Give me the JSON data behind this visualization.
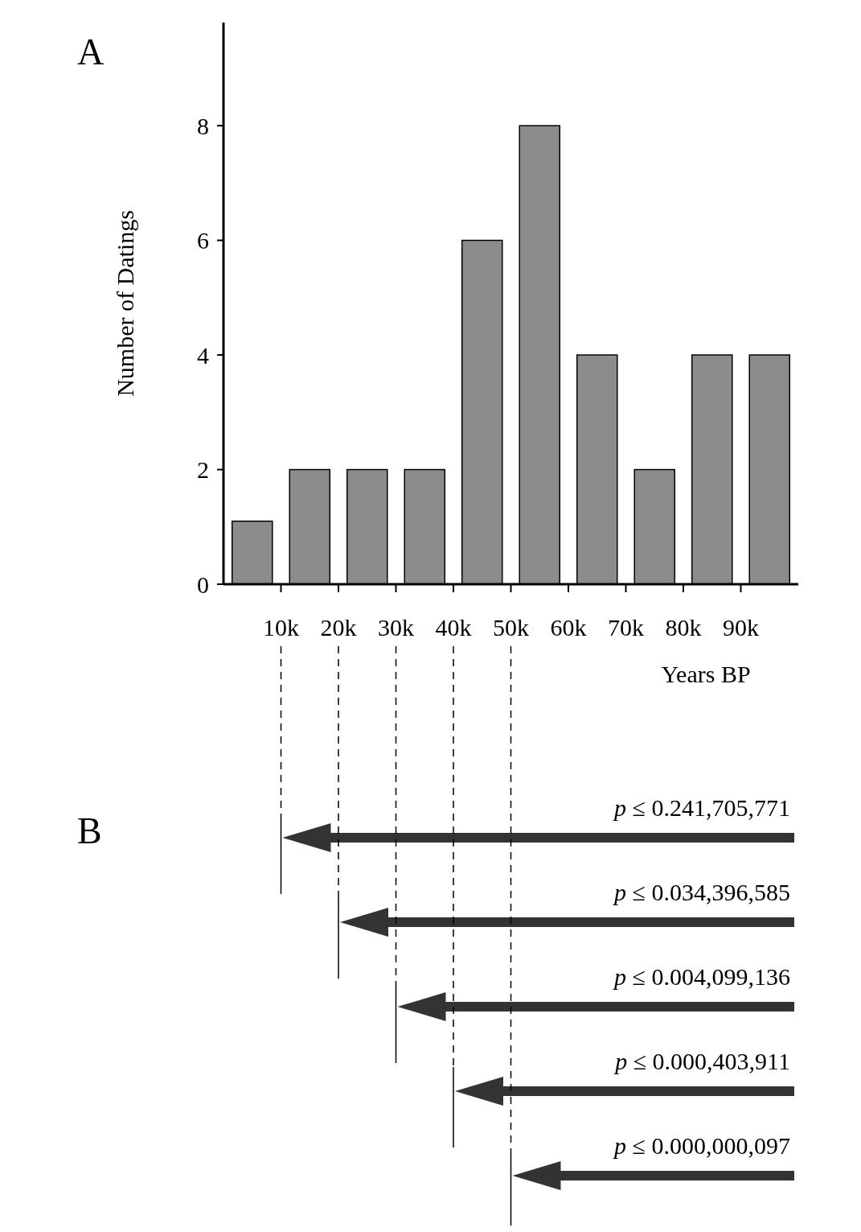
{
  "chart_data": {
    "type": "histogram",
    "xlabel": "Years BP",
    "ylabel": "Number of Datings",
    "bins": [
      0,
      10000,
      20000,
      30000,
      40000,
      50000,
      60000,
      70000,
      80000,
      90000,
      100000
    ],
    "values": [
      1.1,
      2,
      2,
      2,
      6,
      8,
      4,
      2,
      4,
      4
    ],
    "color": "#8c8c8c",
    "xlim": [
      0,
      100000
    ],
    "xticks": [
      {
        "value": 10000,
        "label": "10k"
      },
      {
        "value": 20000,
        "label": "20k"
      },
      {
        "value": 30000,
        "label": "30k"
      },
      {
        "value": 40000,
        "label": "40k"
      },
      {
        "value": 50000,
        "label": "50k"
      },
      {
        "value": 60000,
        "label": "60k"
      },
      {
        "value": 70000,
        "label": "70k"
      },
      {
        "value": 80000,
        "label": "80k"
      },
      {
        "value": 90000,
        "label": "90k"
      }
    ],
    "ylim": [
      0,
      9.8
    ],
    "yticks": [
      0,
      2,
      4,
      6,
      8
    ],
    "grid": false,
    "annotations": [
      "A",
      "B",
      "p ≤ 0.241,705,771",
      "p ≤ 0.034,396,585",
      "p ≤ 0.004,099,136",
      "p ≤ 0.000,403,911",
      "p ≤ 0.000,000,097"
    ]
  }
}
